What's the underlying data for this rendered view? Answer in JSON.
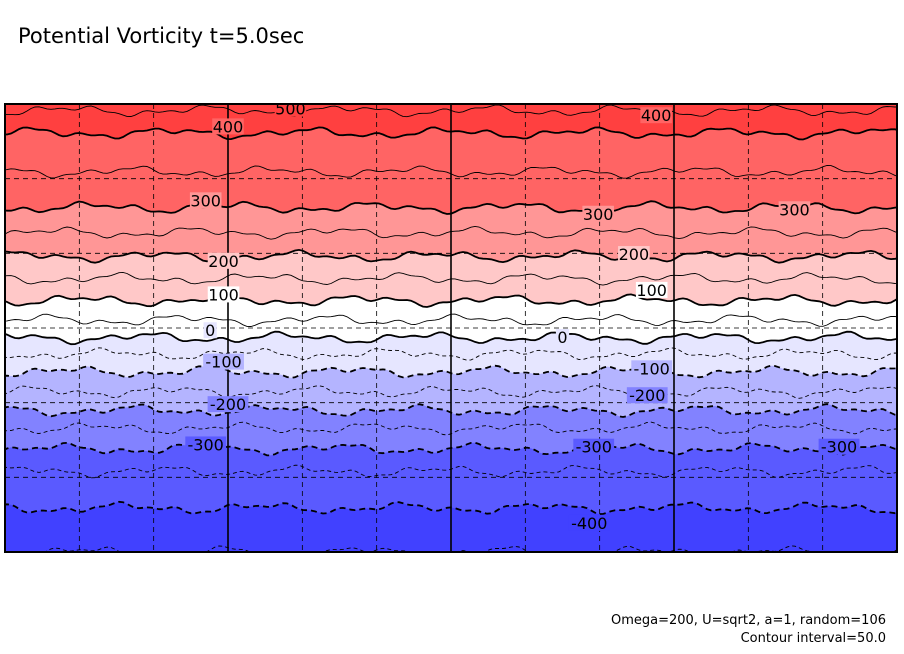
{
  "title": "Potential Vorticity t=5.0sec",
  "footnote": {
    "params": "Omega=200, U=sqrt2, a=1, random=106",
    "contour": "Contour interval=50.0"
  },
  "chart_data": {
    "type": "contour",
    "variable": "potential vorticity",
    "contour_interval": 50,
    "value_range": [
      -450,
      500
    ],
    "colormap": "blue-white-red",
    "color_stops": [
      {
        "value": -450,
        "color": "#4141ff"
      },
      {
        "value": -350,
        "color": "#5a5aff"
      },
      {
        "value": -250,
        "color": "#8282ff"
      },
      {
        "value": -150,
        "color": "#b4b4ff"
      },
      {
        "value": -50,
        "color": "#e6e6ff"
      },
      {
        "value": 50,
        "color": "#ffffff"
      },
      {
        "value": 150,
        "color": "#ffc8c8"
      },
      {
        "value": 250,
        "color": "#ff9696"
      },
      {
        "value": 350,
        "color": "#ff6464"
      },
      {
        "value": 450,
        "color": "#ff4040"
      }
    ],
    "band_profile": [
      {
        "y": 0.0,
        "value": 480
      },
      {
        "y": 0.03,
        "value": 420
      },
      {
        "y": 0.1,
        "value": 380
      },
      {
        "y": 0.22,
        "value": 310
      },
      {
        "y": 0.31,
        "value": 230
      },
      {
        "y": 0.37,
        "value": 170
      },
      {
        "y": 0.43,
        "value": 110
      },
      {
        "y": 0.5,
        "value": 30
      },
      {
        "y": 0.58,
        "value": -80
      },
      {
        "y": 0.66,
        "value": -170
      },
      {
        "y": 0.74,
        "value": -270
      },
      {
        "y": 0.83,
        "value": -360
      },
      {
        "y": 0.92,
        "value": -410
      },
      {
        "y": 1.0,
        "value": -440
      }
    ],
    "contour_labels": [
      {
        "text": "500",
        "x": 0.32,
        "y": 0.01
      },
      {
        "text": "400",
        "x": 0.25,
        "y": 0.05
      },
      {
        "text": "400",
        "x": 0.73,
        "y": 0.025
      },
      {
        "text": "300",
        "x": 0.225,
        "y": 0.215
      },
      {
        "text": "300",
        "x": 0.665,
        "y": 0.245
      },
      {
        "text": "300",
        "x": 0.885,
        "y": 0.235
      },
      {
        "text": "200",
        "x": 0.245,
        "y": 0.35
      },
      {
        "text": "200",
        "x": 0.705,
        "y": 0.335
      },
      {
        "text": "100",
        "x": 0.245,
        "y": 0.425
      },
      {
        "text": "100",
        "x": 0.725,
        "y": 0.415
      },
      {
        "text": "0",
        "x": 0.23,
        "y": 0.505
      },
      {
        "text": "0",
        "x": 0.625,
        "y": 0.52
      },
      {
        "text": "-100",
        "x": 0.245,
        "y": 0.575
      },
      {
        "text": "-100",
        "x": 0.725,
        "y": 0.59
      },
      {
        "text": "-200",
        "x": 0.25,
        "y": 0.67
      },
      {
        "text": "-200",
        "x": 0.72,
        "y": 0.65
      },
      {
        "text": "-300",
        "x": 0.225,
        "y": 0.76
      },
      {
        "text": "-300",
        "x": 0.66,
        "y": 0.765
      },
      {
        "text": "-300",
        "x": 0.935,
        "y": 0.765
      },
      {
        "text": "-400",
        "x": 0.655,
        "y": 0.935
      }
    ],
    "grid": true,
    "grid_x_divisions": 12,
    "grid_y_divisions": 6
  }
}
